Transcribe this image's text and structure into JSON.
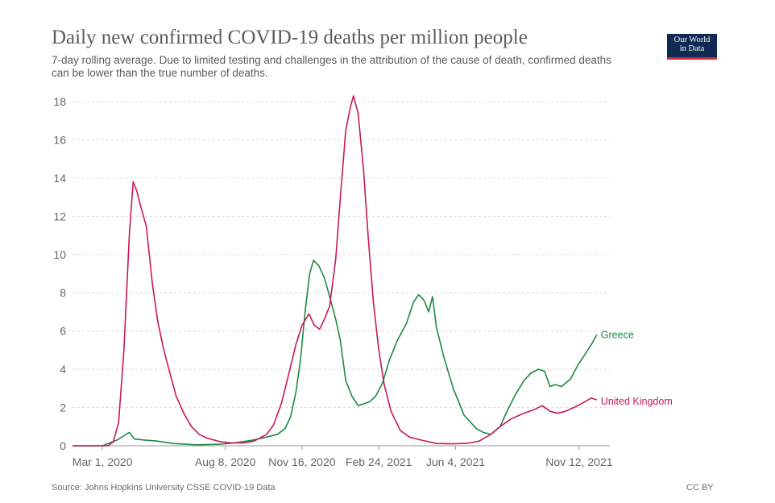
{
  "title": "Daily new confirmed COVID-19 deaths per million people",
  "subtitle": "7-day rolling average. Due to limited testing and challenges in the attribution of the cause of death, confirmed deaths can be lower than the true number of deaths.",
  "logo": {
    "line1": "Our World",
    "line2": "in Data"
  },
  "source": "Source: Johns Hopkins University CSSE COVID-19 Data",
  "license": "CC BY",
  "colors": {
    "greece": "#1c8a42",
    "uk": "#c8185c",
    "grid": "#dcdcdc",
    "axis": "#999999"
  },
  "chart_data": {
    "type": "line",
    "title": "Daily new confirmed COVID-19 deaths per million people",
    "x_ticks": [
      "2020-03-01",
      "2020-08-08",
      "2020-11-16",
      "2021-02-24",
      "2021-06-04",
      "2021-11-12"
    ],
    "x_tick_labels": [
      "Mar 1, 2020",
      "Aug 8, 2020",
      "Nov 16, 2020",
      "Feb 24, 2021",
      "Jun 4, 2021",
      "Nov 12, 2021"
    ],
    "xlim": [
      "2020-01-22",
      "2021-12-22"
    ],
    "ylim": [
      0,
      18
    ],
    "y_ticks": [
      0,
      2,
      4,
      6,
      8,
      10,
      12,
      14,
      16,
      18
    ],
    "grid": "horizontal dashed",
    "series": [
      {
        "name": "Greece",
        "points": [
          [
            "2020-01-22",
            0
          ],
          [
            "2020-03-01",
            0
          ],
          [
            "2020-03-20",
            0.3
          ],
          [
            "2020-03-30",
            0.55
          ],
          [
            "2020-04-05",
            0.7
          ],
          [
            "2020-04-12",
            0.35
          ],
          [
            "2020-04-25",
            0.3
          ],
          [
            "2020-05-10",
            0.25
          ],
          [
            "2020-06-01",
            0.12
          ],
          [
            "2020-07-01",
            0.05
          ],
          [
            "2020-08-01",
            0.08
          ],
          [
            "2020-08-20",
            0.15
          ],
          [
            "2020-09-10",
            0.28
          ],
          [
            "2020-09-25",
            0.4
          ],
          [
            "2020-10-15",
            0.6
          ],
          [
            "2020-10-25",
            0.9
          ],
          [
            "2020-11-01",
            1.5
          ],
          [
            "2020-11-08",
            2.8
          ],
          [
            "2020-11-14",
            4.5
          ],
          [
            "2020-11-20",
            7.0
          ],
          [
            "2020-11-26",
            9.0
          ],
          [
            "2020-12-01",
            9.7
          ],
          [
            "2020-12-08",
            9.4
          ],
          [
            "2020-12-15",
            8.8
          ],
          [
            "2020-12-22",
            7.8
          ],
          [
            "2020-12-30",
            6.6
          ],
          [
            "2021-01-05",
            5.5
          ],
          [
            "2021-01-12",
            3.4
          ],
          [
            "2021-01-20",
            2.6
          ],
          [
            "2021-01-28",
            2.1
          ],
          [
            "2021-02-05",
            2.2
          ],
          [
            "2021-02-12",
            2.3
          ],
          [
            "2021-02-20",
            2.6
          ],
          [
            "2021-03-01",
            3.3
          ],
          [
            "2021-03-10",
            4.5
          ],
          [
            "2021-03-20",
            5.5
          ],
          [
            "2021-04-01",
            6.4
          ],
          [
            "2021-04-10",
            7.5
          ],
          [
            "2021-04-17",
            7.9
          ],
          [
            "2021-04-24",
            7.6
          ],
          [
            "2021-04-30",
            7.0
          ],
          [
            "2021-05-05",
            7.8
          ],
          [
            "2021-05-10",
            6.2
          ],
          [
            "2021-05-20",
            4.6
          ],
          [
            "2021-06-01",
            3.0
          ],
          [
            "2021-06-15",
            1.6
          ],
          [
            "2021-07-01",
            0.9
          ],
          [
            "2021-07-10",
            0.7
          ],
          [
            "2021-07-20",
            0.6
          ],
          [
            "2021-08-01",
            1.0
          ],
          [
            "2021-08-10",
            1.8
          ],
          [
            "2021-08-20",
            2.6
          ],
          [
            "2021-09-01",
            3.4
          ],
          [
            "2021-09-10",
            3.8
          ],
          [
            "2021-09-20",
            4.0
          ],
          [
            "2021-09-28",
            3.9
          ],
          [
            "2021-10-05",
            3.1
          ],
          [
            "2021-10-12",
            3.2
          ],
          [
            "2021-10-20",
            3.1
          ],
          [
            "2021-11-01",
            3.5
          ],
          [
            "2021-11-10",
            4.2
          ],
          [
            "2021-11-20",
            4.8
          ],
          [
            "2021-11-28",
            5.3
          ],
          [
            "2021-12-05",
            5.8
          ]
        ]
      },
      {
        "name": "United Kingdom",
        "points": [
          [
            "2020-01-22",
            0
          ],
          [
            "2020-03-08",
            0
          ],
          [
            "2020-03-15",
            0.2
          ],
          [
            "2020-03-22",
            1.2
          ],
          [
            "2020-03-29",
            5.0
          ],
          [
            "2020-04-05",
            11.0
          ],
          [
            "2020-04-10",
            13.8
          ],
          [
            "2020-04-15",
            13.3
          ],
          [
            "2020-04-20",
            12.5
          ],
          [
            "2020-04-27",
            11.5
          ],
          [
            "2020-05-05",
            8.5
          ],
          [
            "2020-05-12",
            6.5
          ],
          [
            "2020-05-20",
            5.0
          ],
          [
            "2020-05-28",
            3.8
          ],
          [
            "2020-06-05",
            2.6
          ],
          [
            "2020-06-15",
            1.7
          ],
          [
            "2020-06-25",
            1.0
          ],
          [
            "2020-07-05",
            0.6
          ],
          [
            "2020-07-15",
            0.4
          ],
          [
            "2020-08-01",
            0.22
          ],
          [
            "2020-08-15",
            0.15
          ],
          [
            "2020-09-01",
            0.15
          ],
          [
            "2020-09-15",
            0.25
          ],
          [
            "2020-10-01",
            0.6
          ],
          [
            "2020-10-10",
            1.1
          ],
          [
            "2020-10-20",
            2.2
          ],
          [
            "2020-10-30",
            3.8
          ],
          [
            "2020-11-08",
            5.3
          ],
          [
            "2020-11-16",
            6.3
          ],
          [
            "2020-11-25",
            6.9
          ],
          [
            "2020-12-02",
            6.3
          ],
          [
            "2020-12-09",
            6.1
          ],
          [
            "2020-12-15",
            6.6
          ],
          [
            "2020-12-22",
            7.3
          ],
          [
            "2020-12-30",
            9.8
          ],
          [
            "2021-01-05",
            13.0
          ],
          [
            "2021-01-12",
            16.5
          ],
          [
            "2021-01-18",
            17.7
          ],
          [
            "2021-01-22",
            18.3
          ],
          [
            "2021-01-28",
            17.4
          ],
          [
            "2021-02-04",
            14.5
          ],
          [
            "2021-02-10",
            11.0
          ],
          [
            "2021-02-17",
            7.5
          ],
          [
            "2021-02-24",
            5.0
          ],
          [
            "2021-03-03",
            3.2
          ],
          [
            "2021-03-12",
            1.8
          ],
          [
            "2021-03-24",
            0.8
          ],
          [
            "2021-04-05",
            0.45
          ],
          [
            "2021-04-20",
            0.3
          ],
          [
            "2021-05-10",
            0.12
          ],
          [
            "2021-06-01",
            0.1
          ],
          [
            "2021-06-20",
            0.13
          ],
          [
            "2021-07-05",
            0.25
          ],
          [
            "2021-07-20",
            0.6
          ],
          [
            "2021-08-01",
            1.0
          ],
          [
            "2021-08-15",
            1.4
          ],
          [
            "2021-09-01",
            1.7
          ],
          [
            "2021-09-15",
            1.9
          ],
          [
            "2021-09-25",
            2.1
          ],
          [
            "2021-10-05",
            1.8
          ],
          [
            "2021-10-15",
            1.7
          ],
          [
            "2021-10-25",
            1.8
          ],
          [
            "2021-11-05",
            2.0
          ],
          [
            "2021-11-15",
            2.2
          ],
          [
            "2021-11-28",
            2.5
          ],
          [
            "2021-12-05",
            2.4
          ]
        ]
      }
    ]
  }
}
